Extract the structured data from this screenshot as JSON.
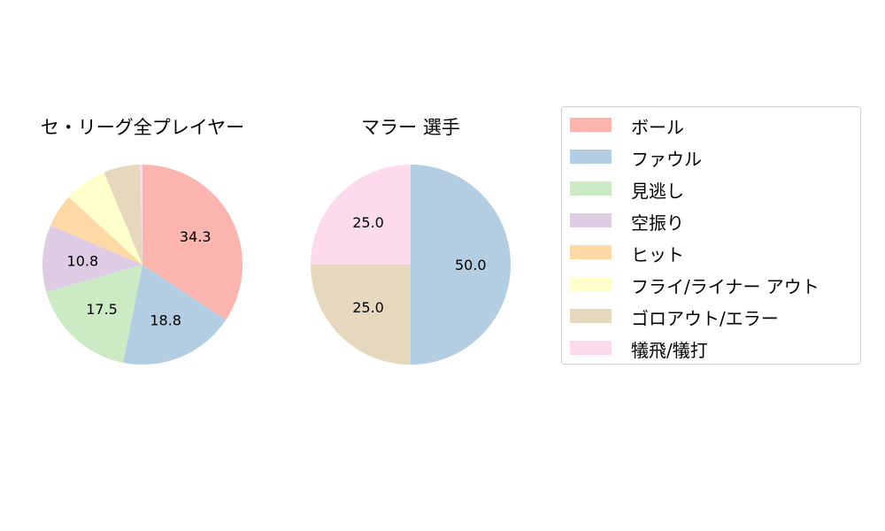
{
  "chart_data": [
    {
      "type": "pie",
      "title": "セ・リーグ全プレイヤー",
      "start_angle": 90,
      "direction": "clockwise",
      "categories": [
        "ボール",
        "ファウル",
        "見逃し",
        "空振り",
        "ヒット",
        "フライ/ライナー アウト",
        "ゴロアウト/エラー",
        "犠飛/犠打"
      ],
      "values": [
        34.3,
        18.8,
        17.5,
        10.8,
        5.4,
        6.9,
        5.9,
        0.4
      ],
      "labels_shown": [
        "34.3",
        "18.8",
        "17.5",
        "10.8",
        "",
        "",
        "",
        ""
      ]
    },
    {
      "type": "pie",
      "title": "マラー  選手",
      "start_angle": 90,
      "direction": "clockwise",
      "categories": [
        "ボール",
        "ファウル",
        "見逃し",
        "空振り",
        "ヒット",
        "フライ/ライナー アウト",
        "ゴロアウト/エラー",
        "犠飛/犠打"
      ],
      "values": [
        0,
        50.0,
        0,
        0,
        0,
        0,
        25.0,
        25.0
      ],
      "labels_shown": [
        "",
        "50.0",
        "",
        "",
        "",
        "",
        "25.0",
        "25.0"
      ]
    }
  ],
  "legend": {
    "position": "right",
    "items": [
      {
        "label": "ボール",
        "color": "#fbb4ae"
      },
      {
        "label": "ファウル",
        "color": "#b3cde3"
      },
      {
        "label": "見逃し",
        "color": "#ccebc5"
      },
      {
        "label": "空振り",
        "color": "#decbe4"
      },
      {
        "label": "ヒット",
        "color": "#fed9a6"
      },
      {
        "label": "フライ/ライナー アウト",
        "color": "#ffffcc"
      },
      {
        "label": "ゴロアウト/エラー",
        "color": "#e5d8bd"
      },
      {
        "label": "犠飛/犠打",
        "color": "#fddaec"
      }
    ]
  },
  "titles": {
    "left": "セ・リーグ全プレイヤー",
    "right": "マラー  選手"
  }
}
